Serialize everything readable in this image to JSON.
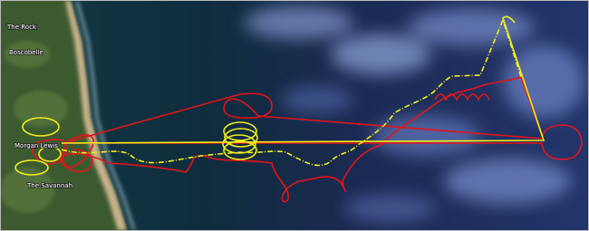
{
  "map": {
    "place_names": [
      "The Rock",
      "Boscobelle",
      "Morgan Lewis",
      "The Savannah"
    ]
  }
}
